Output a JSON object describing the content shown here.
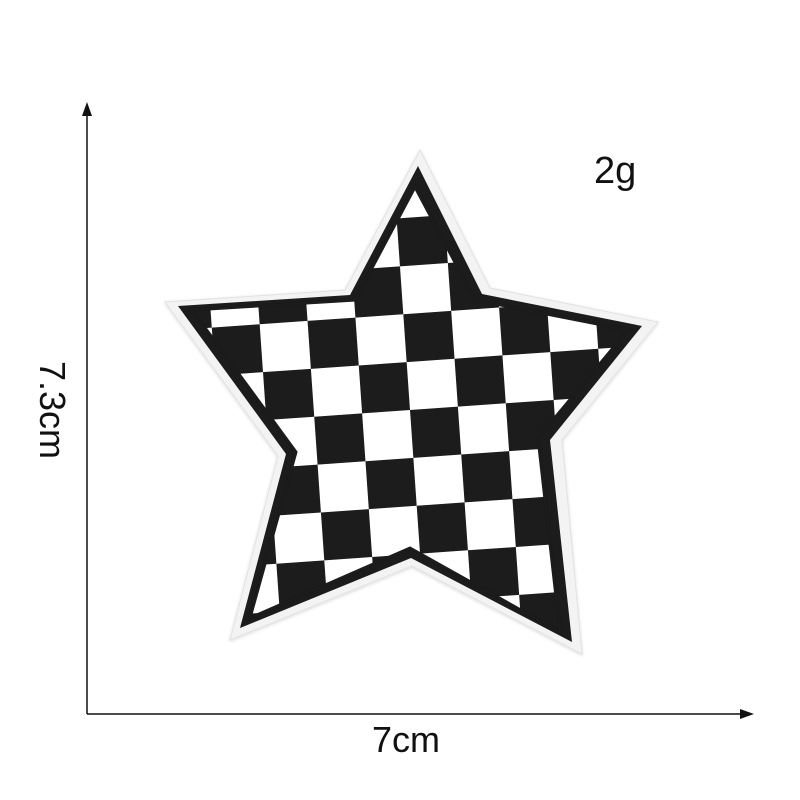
{
  "product": {
    "name": "checkered-star-patch",
    "pattern_colors": {
      "dark": "#1a1a1a",
      "light": "#ffffff",
      "border": "#f2f2f2"
    }
  },
  "labels": {
    "weight": "2g",
    "width": "7cm",
    "height": "7.3cm"
  },
  "axes": {
    "color": "#111111"
  }
}
